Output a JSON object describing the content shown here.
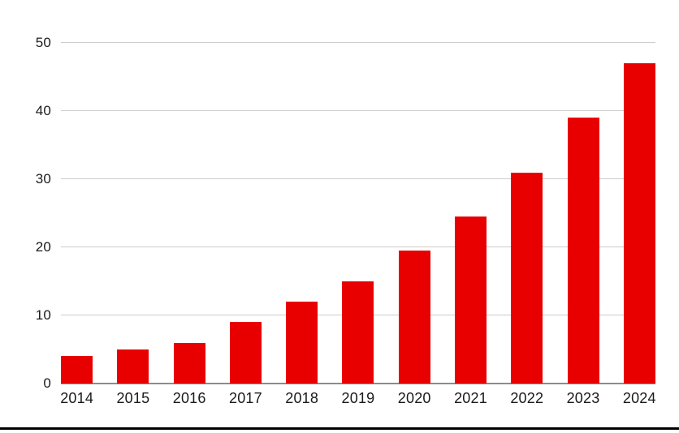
{
  "chart_data": {
    "type": "bar",
    "title": "",
    "xlabel": "",
    "ylabel": "",
    "categories": [
      "2014",
      "2015",
      "2016",
      "2017",
      "2018",
      "2019",
      "2020",
      "2021",
      "2022",
      "2023",
      "2024"
    ],
    "values": [
      4,
      5,
      6,
      9,
      12,
      15,
      19.5,
      24.5,
      31,
      39,
      47
    ],
    "ylim": [
      0,
      50
    ],
    "yticks": [
      0,
      10,
      20,
      30,
      40,
      50
    ],
    "grid": "horizontal",
    "legend": "none",
    "colors": {
      "bar": "#e80000",
      "gridline": "#cccccc",
      "axis_line": "#8c8c8c",
      "label": "#1a1a1a",
      "bottom_rule": "#000000"
    }
  }
}
